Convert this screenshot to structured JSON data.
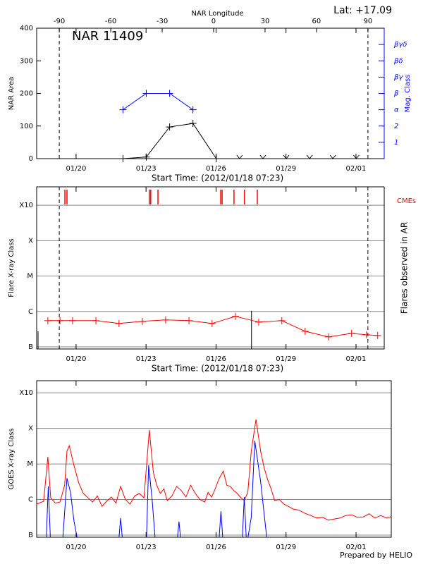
{
  "chart_data": [
    {
      "type": "line",
      "title": "NAR 11409",
      "annotations": [
        "Lat: +17.09"
      ],
      "x2label": "NAR Longitude",
      "ylabel": "NAR Area",
      "y2label": "Mag. Class",
      "y2color": "#0000ff",
      "xlabel": "Start Time: (2012/01/18 07:23)",
      "xlim": [
        0,
        14.9
      ],
      "xticks": [
        {
          "value": 1.69,
          "label": "01/20"
        },
        {
          "value": 4.69,
          "label": "01/23"
        },
        {
          "value": 7.69,
          "label": "01/26"
        },
        {
          "value": 10.69,
          "label": "01/29"
        },
        {
          "value": 13.69,
          "label": "02/01"
        }
      ],
      "x2lim": [
        -103.2,
        99.5
      ],
      "x2ticks": [
        -90,
        -60,
        -30,
        0,
        30,
        60,
        90
      ],
      "limb_lines": [
        -90,
        90
      ],
      "ylim": [
        0,
        400
      ],
      "yticks": [
        0,
        100,
        200,
        300,
        400
      ],
      "y2lim": [
        0,
        8
      ],
      "y2ticks": [
        1,
        2,
        {
          "value": 3,
          "label": "α"
        },
        {
          "value": 4,
          "label": "β"
        },
        {
          "value": 5,
          "label": "βγ"
        },
        {
          "value": 6,
          "label": "βδ"
        },
        {
          "value": 7,
          "label": "βγδ"
        }
      ],
      "series": [
        {
          "color": "#000000",
          "marker": "plus",
          "x": [
            3.7,
            4.7,
            5.7,
            6.7,
            7.7
          ],
          "values": [
            0,
            5,
            97,
            108,
            0
          ]
        },
        {
          "color": "#000000",
          "marker": "arrow",
          "line": false,
          "x": [
            8.7,
            9.7,
            10.7,
            11.7,
            12.7,
            13.7
          ],
          "values": [
            0,
            0,
            0,
            0,
            0,
            0
          ]
        },
        {
          "color": "#0000ff",
          "marker": "plus",
          "axis": "y2",
          "x": [
            3.7,
            4.7,
            5.7,
            6.7
          ],
          "values": [
            3,
            4,
            4,
            3
          ]
        }
      ]
    },
    {
      "type": "line",
      "ylabel": "Flare X-ray Class",
      "y2label": "Flares observed in AR",
      "xlabel": "Start Time: (2012/01/18 07:23)",
      "xlim": [
        0,
        14.9
      ],
      "xticks": [
        {
          "value": 1.69,
          "label": "01/20"
        },
        {
          "value": 4.69,
          "label": "01/23"
        },
        {
          "value": 7.69,
          "label": "01/26"
        },
        {
          "value": 10.69,
          "label": "01/29"
        },
        {
          "value": 13.69,
          "label": "02/01"
        }
      ],
      "limb_lines": [
        0.97,
        14.2
      ],
      "ylim": [
        -7.06,
        -2.48
      ],
      "yticks": [
        {
          "value": -7,
          "label": "B"
        },
        {
          "value": -6,
          "label": "C"
        },
        {
          "value": -5,
          "label": "M"
        },
        {
          "value": -4,
          "label": "X"
        },
        {
          "value": -3,
          "label": "X10"
        }
      ],
      "grid": true,
      "series": [
        {
          "color": "#ff0000",
          "marker": "plus",
          "x": [
            0.48,
            1.0,
            1.54,
            2.54,
            3.53,
            4.53,
            5.53,
            6.53,
            7.52,
            8.52,
            9.52,
            10.51,
            11.51,
            12.51,
            13.5,
            14.14,
            14.62
          ],
          "values": [
            -6.26,
            -6.26,
            -6.26,
            -6.26,
            -6.34,
            -6.28,
            -6.24,
            -6.26,
            -6.34,
            -6.14,
            -6.3,
            -6.26,
            -6.56,
            -6.72,
            -6.62,
            -6.66,
            -6.68
          ]
        }
      ],
      "cmes": {
        "name": "CMEs",
        "color": "#ff0000",
        "x": [
          1.21,
          1.3,
          4.83,
          4.89,
          5.2,
          7.89,
          7.95,
          8.46,
          8.91,
          9.46
        ]
      },
      "event_lines": {
        "x": [
          0.06,
          9.21
        ],
        "values": [
          -6.56,
          -5.98
        ]
      }
    },
    {
      "type": "line",
      "ylabel": "GOES X-ray Class",
      "annotations": [
        "Prepared by HELIO"
      ],
      "xlim": [
        0,
        15.2
      ],
      "xticks": [
        {
          "value": 1.69,
          "label": "01/20"
        },
        {
          "value": 4.69,
          "label": "01/23"
        },
        {
          "value": 7.69,
          "label": "01/26"
        },
        {
          "value": 10.69,
          "label": "01/29"
        },
        {
          "value": 13.69,
          "label": "02/01"
        }
      ],
      "ylim": [
        -7.06,
        -2.66
      ],
      "yticks": [
        {
          "value": -7,
          "label": "B"
        },
        {
          "value": -6,
          "label": "C"
        },
        {
          "value": -5,
          "label": "M"
        },
        {
          "value": -4,
          "label": "X"
        },
        {
          "value": -3,
          "label": "X10"
        }
      ],
      "grid": true,
      "series": [
        {
          "color": "#ff0000",
          "x": [
            0,
            0.3,
            0.48,
            0.6,
            0.8,
            1.0,
            1.2,
            1.3,
            1.4,
            1.6,
            1.8,
            2.0,
            2.2,
            2.4,
            2.6,
            2.8,
            3.0,
            3.2,
            3.4,
            3.6,
            3.8,
            4.0,
            4.2,
            4.4,
            4.6,
            4.7,
            4.83,
            5.0,
            5.15,
            5.3,
            5.45,
            5.6,
            5.8,
            6.0,
            6.2,
            6.4,
            6.6,
            6.8,
            7.0,
            7.2,
            7.35,
            7.5,
            7.65,
            7.8,
            8.0,
            8.15,
            8.3,
            8.45,
            8.6,
            8.75,
            8.9,
            9.05,
            9.2,
            9.4,
            9.6,
            9.75,
            9.9,
            10.05,
            10.2,
            10.4,
            10.6,
            10.8,
            11.0,
            11.25,
            11.5,
            11.75,
            12.0,
            12.25,
            12.5,
            12.75,
            13.0,
            13.25,
            13.5,
            13.75,
            14.0,
            14.25,
            14.5,
            14.75,
            15.0,
            15.2
          ],
          "values": [
            -6.13,
            -6.05,
            -4.8,
            -5.95,
            -6.1,
            -6.07,
            -5.6,
            -4.64,
            -4.49,
            -5.04,
            -5.53,
            -5.83,
            -5.95,
            -6.07,
            -5.9,
            -6.19,
            -6.05,
            -5.93,
            -6.1,
            -5.63,
            -6.0,
            -6.13,
            -5.9,
            -5.83,
            -5.95,
            -5.14,
            -4.05,
            -5.24,
            -5.6,
            -5.83,
            -5.7,
            -6.03,
            -5.9,
            -5.63,
            -5.75,
            -5.93,
            -5.6,
            -5.83,
            -6.0,
            -6.07,
            -5.8,
            -5.93,
            -5.7,
            -5.44,
            -5.2,
            -5.6,
            -5.63,
            -5.75,
            -5.83,
            -5.95,
            -6.03,
            -5.8,
            -4.64,
            -3.75,
            -4.64,
            -5.1,
            -5.44,
            -5.7,
            -6.03,
            -6.0,
            -6.13,
            -6.2,
            -6.27,
            -6.3,
            -6.39,
            -6.45,
            -6.52,
            -6.5,
            -6.58,
            -6.55,
            -6.52,
            -6.45,
            -6.43,
            -6.5,
            -6.49,
            -6.4,
            -6.52,
            -6.45,
            -6.52,
            -6.48
          ]
        },
        {
          "color": "#0000ff",
          "x": [
            0,
            0.4,
            0.5,
            0.6,
            1.1,
            1.3,
            1.45,
            1.6,
            1.8,
            3.5,
            3.6,
            3.7,
            4.7,
            4.8,
            4.95,
            5.1,
            6.0,
            6.1,
            6.2,
            7.8,
            7.9,
            8.0,
            8.8,
            8.9,
            9.0,
            9.2,
            9.35,
            9.6,
            9.9,
            10.2,
            15.2
          ],
          "values": [
            -7.3,
            -7.3,
            -5.63,
            -7.3,
            -7.3,
            -5.4,
            -5.8,
            -6.6,
            -7.3,
            -7.3,
            -6.52,
            -7.3,
            -7.3,
            -5.04,
            -6.0,
            -7.3,
            -7.3,
            -6.62,
            -7.3,
            -7.3,
            -6.33,
            -7.3,
            -7.3,
            -5.93,
            -7.3,
            -6.5,
            -4.35,
            -5.5,
            -7.3,
            -7.3,
            -7.3
          ]
        }
      ]
    }
  ]
}
